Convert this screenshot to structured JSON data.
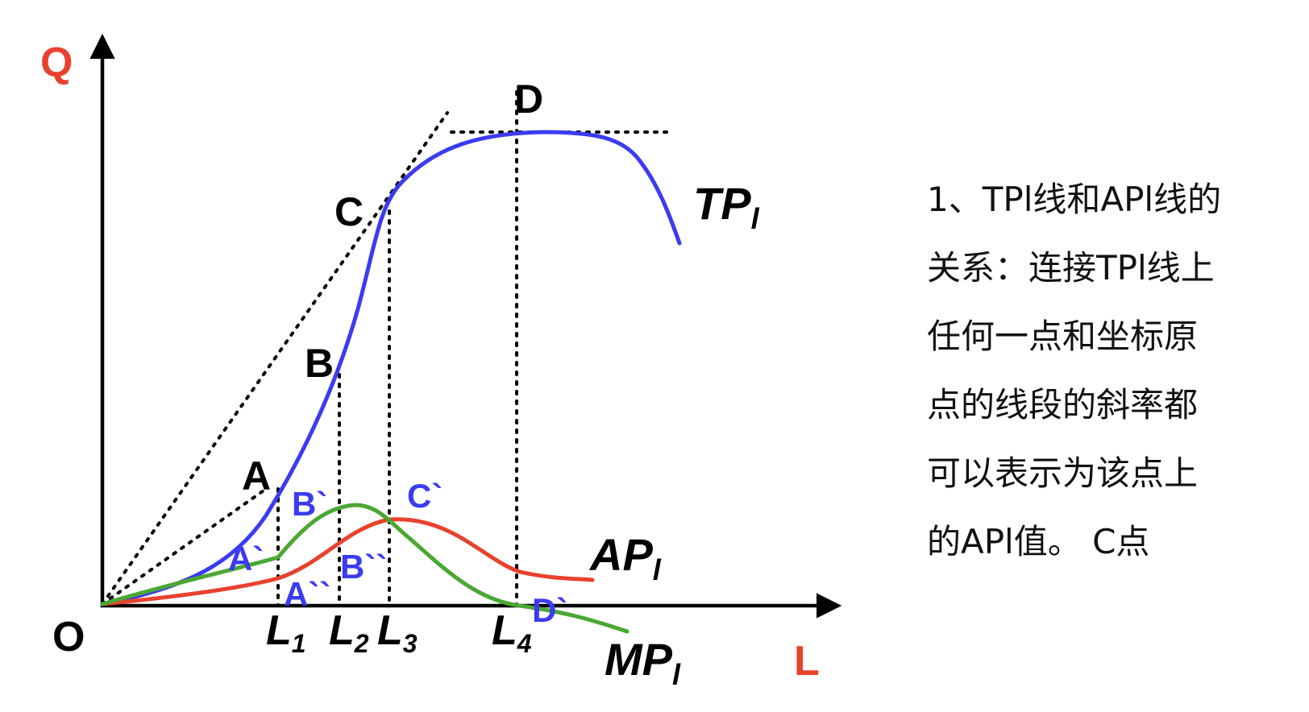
{
  "colors": {
    "axis": "#000000",
    "axis_label": "#e8412d",
    "tp_curve": "#3b3bf0",
    "ap_curve": "#e8412d",
    "mp_curve": "#4aa832",
    "point_primary": "#000000",
    "point_secondary": "#3b3bf0",
    "guide_lines": "#000000"
  },
  "axes": {
    "y_label": "Q",
    "x_label": "L",
    "origin_label": "O"
  },
  "x_ticks": [
    {
      "base": "L",
      "sub": "1"
    },
    {
      "base": "L",
      "sub": "2"
    },
    {
      "base": "L",
      "sub": "3"
    },
    {
      "base": "L",
      "sub": "4"
    }
  ],
  "curves": {
    "tp": {
      "base": "TP",
      "sub": "l"
    },
    "ap": {
      "base": "AP",
      "sub": "l"
    },
    "mp": {
      "base": "MP",
      "sub": "l"
    }
  },
  "points": {
    "tp": [
      "A",
      "B",
      "C",
      "D"
    ],
    "mp": [
      "A`",
      "B`",
      "C`",
      "D`"
    ],
    "ap": [
      "A``",
      "B``"
    ]
  },
  "note": {
    "lines": [
      "1、TPl线和APl线的",
      "关系：连接TPl线上",
      "任何一点和坐标原",
      "点的线段的斜率都",
      "可以表示为该点上",
      "的APl值。    C点"
    ]
  }
}
